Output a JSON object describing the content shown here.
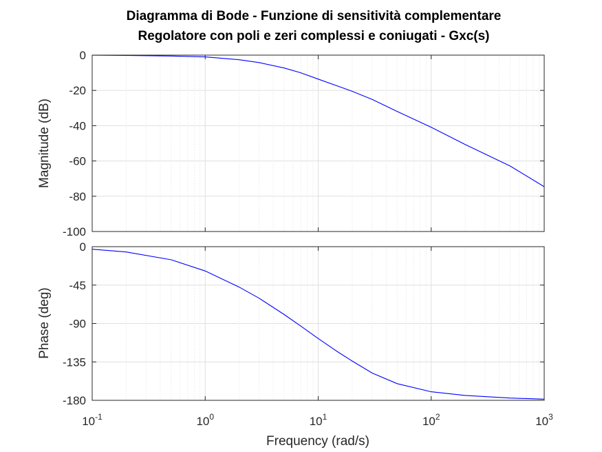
{
  "chart_data": {
    "type": "line",
    "title_lines": [
      "Diagramma di Bode - Funzione di sensitività complementare",
      "Regolatore con poli e zeri complessi e coniugati - Gxc(s)"
    ],
    "xlabel": "Frequency  (rad/s)",
    "xscale": "log",
    "xlim": [
      0.1,
      1000
    ],
    "x_ticks": [
      {
        "base": "10",
        "exp": "-1"
      },
      {
        "base": "10",
        "exp": "0"
      },
      {
        "base": "10",
        "exp": "1"
      },
      {
        "base": "10",
        "exp": "2"
      },
      {
        "base": "10",
        "exp": "3"
      }
    ],
    "grid": true,
    "line_color": "#0000ff",
    "panels": [
      {
        "name": "magnitude",
        "ylabel": "Magnitude (dB)",
        "ylim": [
          -100,
          0
        ],
        "yticks": [
          "0",
          "-20",
          "-40",
          "-60",
          "-80",
          "-100"
        ],
        "yticks_values": [
          0,
          -20,
          -40,
          -60,
          -80,
          -100
        ],
        "series": [
          {
            "x": [
              0.1,
              0.2,
              0.5,
              1,
              2,
              3,
              5,
              7,
              10,
              15,
              20,
              30,
              50,
              100,
              200,
              500,
              1000
            ],
            "y": [
              -0.04,
              -0.17,
              -0.5,
              -1.0,
              -2.6,
              -4.2,
              -7.3,
              -10.0,
              -13.6,
              -17.6,
              -20.5,
              -25.1,
              -31.9,
              -40.9,
              -50.7,
              -62.9,
              -74.6
            ]
          }
        ]
      },
      {
        "name": "phase",
        "ylabel": "Phase (deg)",
        "ylim": [
          -180,
          0
        ],
        "yticks": [
          "0",
          "-45",
          "-90",
          "-135",
          "-180"
        ],
        "yticks_values": [
          0,
          -45,
          -90,
          -135,
          -180
        ],
        "series": [
          {
            "x": [
              0.1,
              0.2,
              0.5,
              1,
              2,
              3,
              5,
              7,
              10,
              15,
              20,
              30,
              50,
              100,
              200,
              500,
              1000
            ],
            "y": [
              -3.0,
              -6.2,
              -15.3,
              -28.5,
              -47.4,
              -60.4,
              -79.5,
              -93.0,
              -107.6,
              -123.5,
              -134.0,
              -148.0,
              -160.5,
              -170.0,
              -174.3,
              -177.3,
              -178.6
            ]
          }
        ]
      }
    ]
  }
}
